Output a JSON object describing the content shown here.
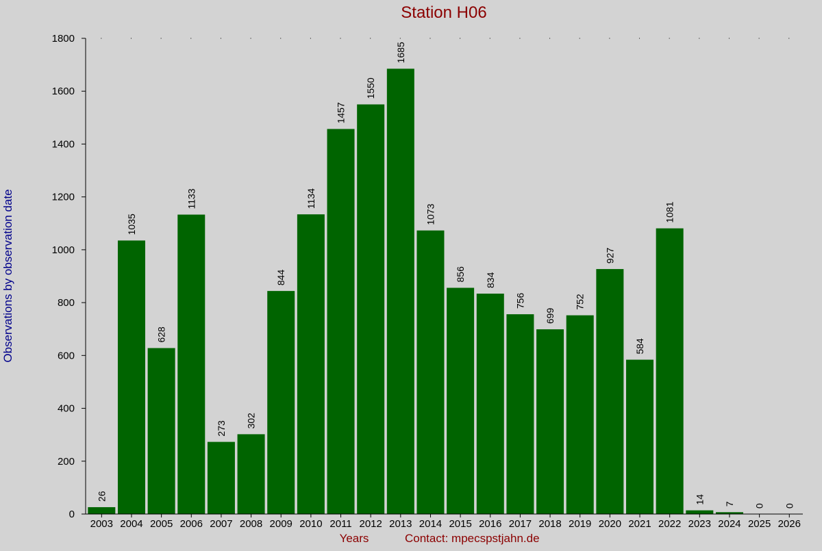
{
  "chart_data": {
    "type": "bar",
    "title": "Station H06",
    "xlabel": "Years",
    "ylabel": "Observations by observation date",
    "footer": "Contact: mpecspstjahn.de",
    "categories": [
      "2003",
      "2004",
      "2005",
      "2006",
      "2007",
      "2008",
      "2009",
      "2010",
      "2011",
      "2012",
      "2013",
      "2014",
      "2015",
      "2016",
      "2017",
      "2018",
      "2019",
      "2020",
      "2021",
      "2022",
      "2023",
      "2024",
      "2025",
      "2026"
    ],
    "values": [
      26,
      1035,
      628,
      1133,
      273,
      302,
      844,
      1134,
      1457,
      1550,
      1685,
      1073,
      856,
      834,
      756,
      699,
      752,
      927,
      584,
      1081,
      14,
      7,
      0,
      0
    ],
    "ylim": [
      0,
      1800
    ],
    "yticks": [
      0,
      200,
      400,
      600,
      800,
      1000,
      1200,
      1400,
      1600,
      1800
    ],
    "bar_color": "#006400",
    "title_color": "#8b0000",
    "ylabel_color": "#00008b",
    "xlabel_color": "#8b0000",
    "grid": false,
    "legend": "none"
  }
}
